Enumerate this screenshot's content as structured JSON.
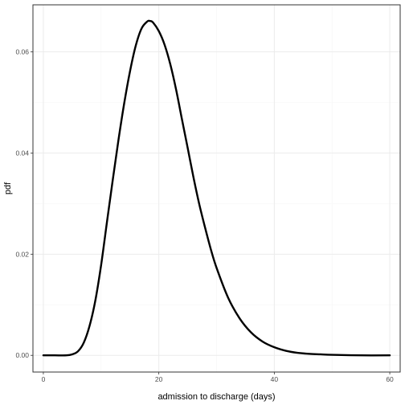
{
  "chart_data": {
    "type": "line",
    "title": "",
    "xlabel": "admission to discharge (days)",
    "ylabel": "pdf",
    "xlim": [
      -1.8,
      61.8
    ],
    "ylim": [
      -0.0033,
      0.0693
    ],
    "x_ticks": [
      0,
      20,
      40,
      60
    ],
    "x_tick_labels": [
      "0",
      "20",
      "40",
      "60"
    ],
    "y_ticks": [
      0.0,
      0.02,
      0.04,
      0.06
    ],
    "y_tick_labels": [
      "0.00",
      "0.02",
      "0.04",
      "0.06"
    ],
    "grid": true,
    "legend": "none",
    "series": [
      {
        "color": "#000000",
        "x": [
          0,
          2,
          4,
          5,
          6,
          7,
          8,
          9,
          10,
          11,
          12,
          13,
          14,
          15,
          16,
          17,
          18,
          18.5,
          19,
          20,
          21,
          22,
          23,
          24,
          25,
          26,
          27,
          28,
          29,
          30,
          32,
          34,
          36,
          38,
          40,
          42,
          44,
          46,
          48,
          50,
          55,
          60
        ],
        "y": [
          0.0,
          0.0,
          0.0,
          0.0002,
          0.0008,
          0.0025,
          0.0058,
          0.0108,
          0.0178,
          0.0262,
          0.0345,
          0.0425,
          0.0498,
          0.0561,
          0.0612,
          0.0646,
          0.066,
          0.0661,
          0.0658,
          0.0641,
          0.0614,
          0.0575,
          0.0525,
          0.0467,
          0.041,
          0.0352,
          0.0299,
          0.0253,
          0.021,
          0.0173,
          0.0114,
          0.0073,
          0.0045,
          0.0027,
          0.0016,
          0.0009,
          0.0005,
          0.0003,
          0.0002,
          0.0001,
          0.0,
          0.0
        ]
      }
    ]
  },
  "colors": {
    "panel_border": "#333333",
    "grid_major": "#ebebeb",
    "grid_minor": "#f5f5f5",
    "line": "#000000"
  }
}
